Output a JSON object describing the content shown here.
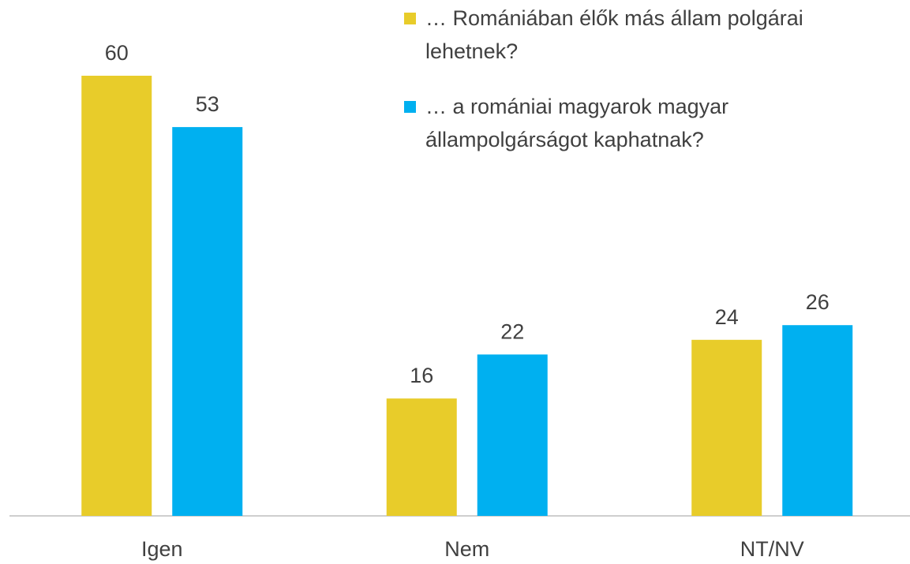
{
  "chart_data": {
    "type": "bar",
    "categories": [
      "Igen",
      "Nem",
      "NT/NV"
    ],
    "series": [
      {
        "name": "… Romániában élők más állam polgárai lehetnek?",
        "color": "#e8cc2a",
        "values": [
          60,
          16,
          24
        ]
      },
      {
        "name": "… a romániai magyarok magyar állampolgárságot kaphatnak?",
        "color": "#00b0f0",
        "values": [
          53,
          22,
          26
        ]
      }
    ]
  }
}
